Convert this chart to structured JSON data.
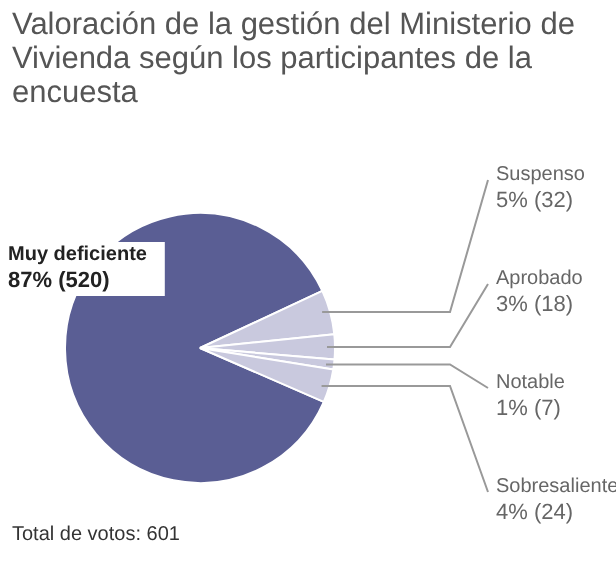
{
  "chart_data": {
    "type": "pie",
    "title": "Valoración de la gestión del Ministerio de Vivienda según los participantes de la encuesta",
    "categories": [
      "Muy deficiente",
      "Suspenso",
      "Aprobado",
      "Notable",
      "Sobresaliente"
    ],
    "values": [
      520,
      32,
      18,
      7,
      24
    ],
    "colors": [
      "#5a5e94",
      "#c9c9de",
      "#c9c9de",
      "#c9c9de",
      "#c9c9de"
    ],
    "value_labels": [
      "87% (520)",
      "5% (32)",
      "3% (18)",
      "1% (7)",
      "4% (24)"
    ],
    "annotations": [
      "Total de votos: 601"
    ],
    "legend": false
  }
}
